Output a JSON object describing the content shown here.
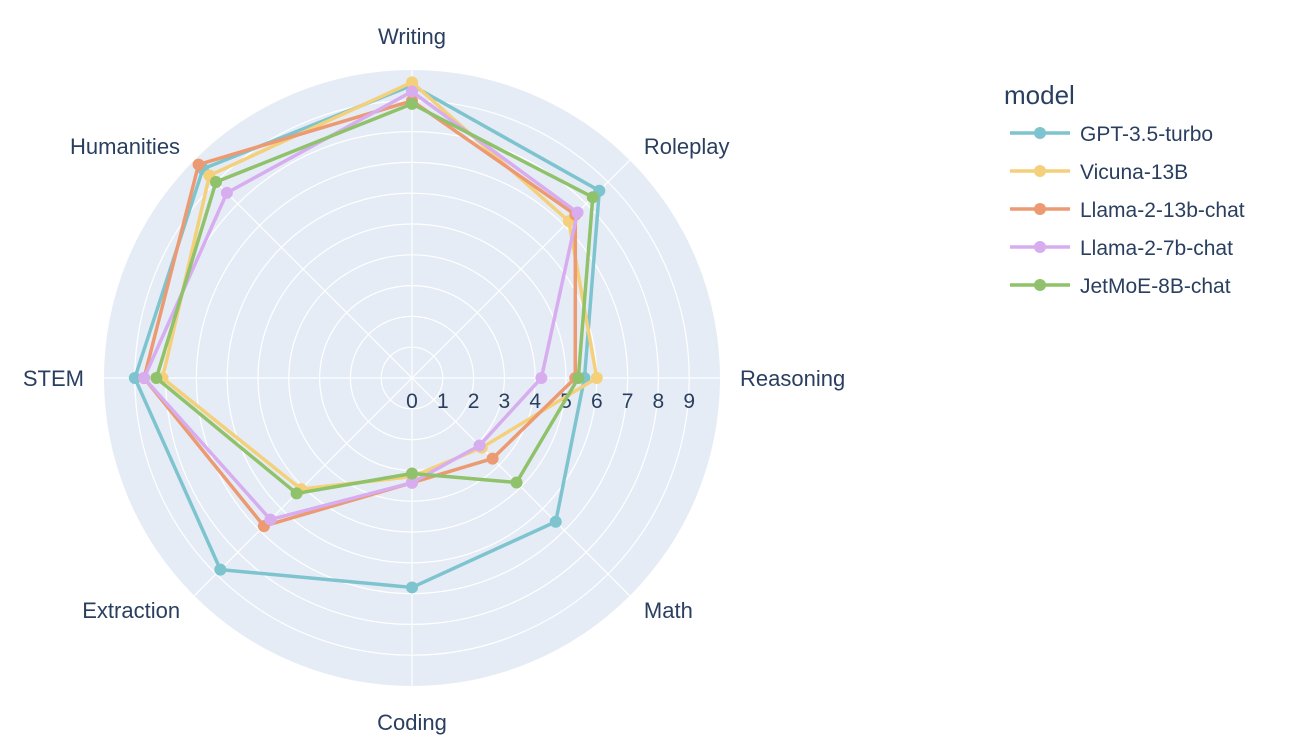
{
  "chart_data": {
    "type": "radar",
    "categories": [
      "Writing",
      "Roleplay",
      "Reasoning",
      "Math",
      "Coding",
      "Extraction",
      "STEM",
      "Humanities"
    ],
    "radial_ticks": [
      "0",
      "1",
      "2",
      "3",
      "4",
      "5",
      "6",
      "7",
      "8",
      "9"
    ],
    "rmax": 10,
    "legend_title": "model",
    "legend_position": "top-right",
    "series": [
      {
        "name": "GPT-3.5-turbo",
        "color": "#7ec4cf",
        "values": [
          9.5,
          8.6,
          5.6,
          6.6,
          6.8,
          8.8,
          9.0,
          9.6
        ]
      },
      {
        "name": "Vicuna-13B",
        "color": "#f4d07a",
        "values": [
          9.6,
          7.2,
          6.0,
          3.2,
          3.2,
          5.1,
          8.1,
          9.3
        ]
      },
      {
        "name": "Llama-2-13b-chat",
        "color": "#eb9a71",
        "values": [
          9.0,
          7.5,
          5.3,
          3.7,
          3.4,
          6.8,
          8.7,
          9.8
        ]
      },
      {
        "name": "Llama-2-7b-chat",
        "color": "#d7adef",
        "values": [
          9.3,
          7.6,
          4.2,
          3.1,
          3.4,
          6.5,
          8.7,
          8.5
        ]
      },
      {
        "name": "JetMoE-8B-chat",
        "color": "#8fc26a",
        "values": [
          8.9,
          8.3,
          5.4,
          4.8,
          3.1,
          5.3,
          8.3,
          9.0
        ]
      }
    ]
  }
}
